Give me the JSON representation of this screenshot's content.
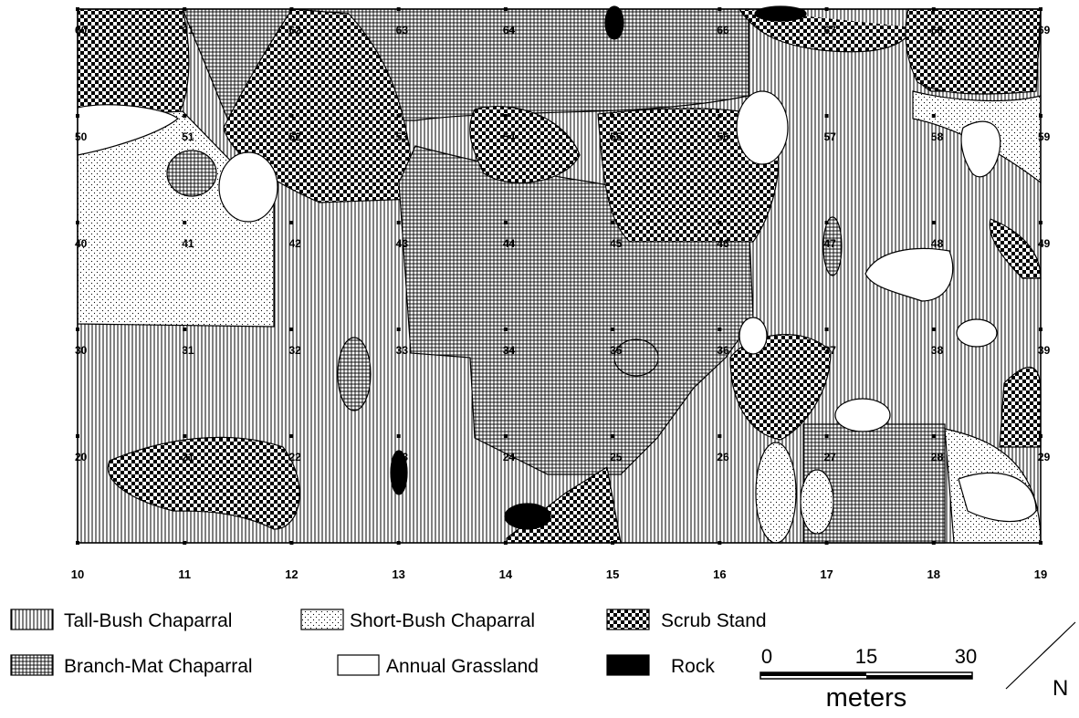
{
  "grid_labels": [
    [
      60,
      61,
      62,
      63,
      64,
      65,
      66,
      67,
      68,
      69
    ],
    [
      50,
      51,
      52,
      53,
      54,
      55,
      56,
      57,
      58,
      59
    ],
    [
      40,
      41,
      42,
      43,
      44,
      45,
      46,
      47,
      48,
      49
    ],
    [
      30,
      31,
      32,
      33,
      34,
      35,
      36,
      37,
      38,
      39
    ],
    [
      20,
      21,
      22,
      23,
      24,
      25,
      26,
      27,
      28,
      29
    ]
  ],
  "x_labels": [
    10,
    11,
    12,
    13,
    14,
    15,
    16,
    17,
    18,
    19
  ],
  "legend": [
    {
      "label": "Tall-Bush Chaparral",
      "pattern": "tall"
    },
    {
      "label": "Short-Bush Chaparral",
      "pattern": "short"
    },
    {
      "label": "Scrub Stand",
      "pattern": "scrub"
    },
    {
      "label": "Branch-Mat Chaparral",
      "pattern": "branch"
    },
    {
      "label": "Annual Grassland",
      "pattern": "grass"
    },
    {
      "label": "Rock",
      "pattern": "rock"
    }
  ],
  "scale": {
    "labels": [
      0,
      15,
      30
    ],
    "unit": "meters"
  },
  "north": "N"
}
